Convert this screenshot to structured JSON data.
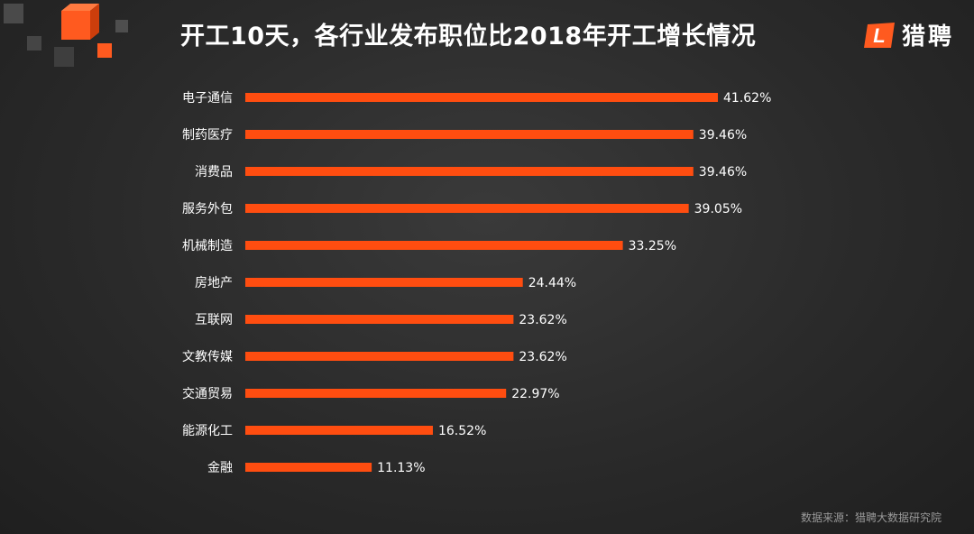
{
  "header": {
    "title": "开工10天，各行业发布职位比2018年开工增长情况"
  },
  "brand": {
    "name": "猎聘",
    "mark_letter": "L",
    "color": "#ff5a1f"
  },
  "footer": {
    "source": "数据来源：猎聘大数据研究院"
  },
  "chart_data": {
    "type": "bar",
    "orientation": "horizontal",
    "title": "开工10天，各行业发布职位比2018年开工增长情况",
    "categories": [
      "电子通信",
      "制药医疗",
      "消费品",
      "服务外包",
      "机械制造",
      "房地产",
      "互联网",
      "文教传媒",
      "交通贸易",
      "能源化工",
      "金融"
    ],
    "values": [
      41.62,
      39.46,
      39.46,
      39.05,
      33.25,
      24.44,
      23.62,
      23.62,
      22.97,
      16.52,
      11.13
    ],
    "value_labels": [
      "41.62%",
      "39.46%",
      "39.46%",
      "39.05%",
      "33.25%",
      "24.44%",
      "23.62%",
      "23.62%",
      "22.97%",
      "16.52%",
      "11.13%"
    ],
    "unit": "%",
    "xlim": [
      0,
      41.62
    ],
    "grid": false,
    "legend": "none",
    "bar_color": "#ff4d10"
  }
}
